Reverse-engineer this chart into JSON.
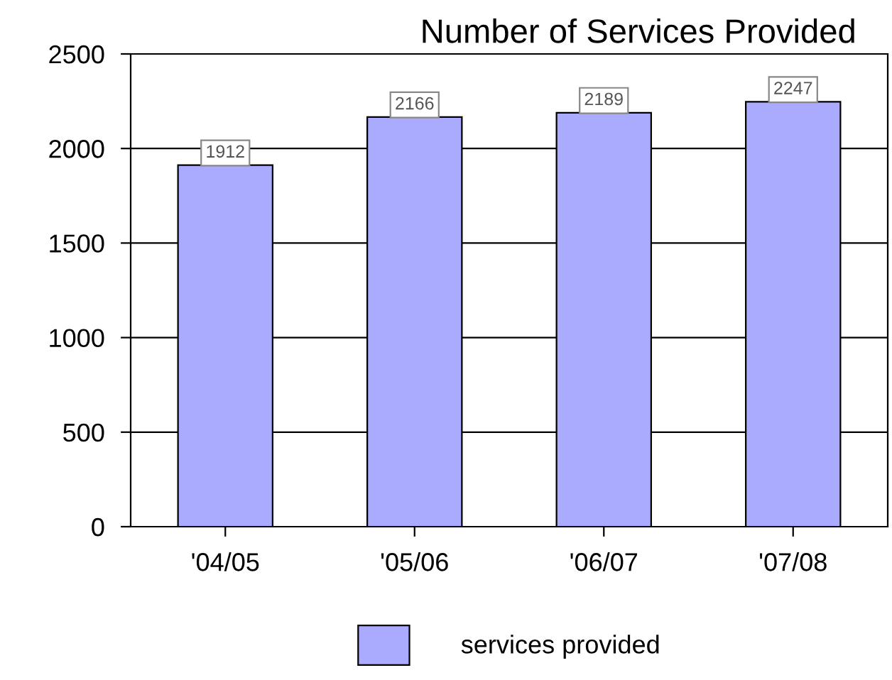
{
  "chart_data": {
    "type": "bar",
    "title": "Number of Services Provided",
    "categories": [
      "'04/05",
      "'05/06",
      "'06/07",
      "'07/08"
    ],
    "series": [
      {
        "name": "services provided",
        "color": "#aaaaff",
        "values": [
          1912,
          2166,
          2189,
          2247
        ]
      }
    ],
    "ylim": [
      0,
      2500
    ],
    "yticks": [
      0,
      500,
      1000,
      1500,
      2000,
      2500
    ],
    "grid": "y",
    "legend": "bottom",
    "data_labels": true
  }
}
